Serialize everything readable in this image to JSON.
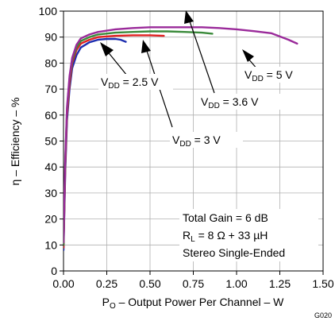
{
  "chart_data": {
    "type": "line",
    "xlabel": {
      "main": "P",
      "sub": "O",
      "rest": " – Output Power Per Channel – W"
    },
    "ylabel": "η – Efficiency – %",
    "xlim": [
      0,
      1.5
    ],
    "ylim": [
      0,
      100
    ],
    "x_ticks": [
      "0.00",
      "0.25",
      "0.50",
      "0.75",
      "1.00",
      "1.25",
      "1.50"
    ],
    "y_ticks": [
      "0",
      "10",
      "20",
      "30",
      "40",
      "50",
      "60",
      "70",
      "80",
      "90",
      "100"
    ],
    "grid": true,
    "series": [
      {
        "name": "V_DD = 2.5 V",
        "color": "#1f2fb0",
        "points": [
          [
            0,
            8
          ],
          [
            0.01,
            38
          ],
          [
            0.02,
            58
          ],
          [
            0.035,
            70
          ],
          [
            0.05,
            78
          ],
          [
            0.075,
            83
          ],
          [
            0.1,
            86
          ],
          [
            0.15,
            88
          ],
          [
            0.2,
            89
          ],
          [
            0.25,
            89.3
          ],
          [
            0.3,
            89.3
          ],
          [
            0.33,
            89
          ],
          [
            0.36,
            88.2
          ]
        ]
      },
      {
        "name": "V_DD = 3 V",
        "color": "#e02020",
        "points": [
          [
            0,
            9
          ],
          [
            0.01,
            40
          ],
          [
            0.02,
            60
          ],
          [
            0.035,
            72
          ],
          [
            0.05,
            80
          ],
          [
            0.075,
            85
          ],
          [
            0.1,
            87.5
          ],
          [
            0.15,
            89
          ],
          [
            0.2,
            90
          ],
          [
            0.3,
            90.5
          ],
          [
            0.4,
            90.7
          ],
          [
            0.5,
            90.7
          ],
          [
            0.58,
            90.5
          ]
        ]
      },
      {
        "name": "V_DD = 3.6 V",
        "color": "#3a8a3a",
        "points": [
          [
            0,
            10
          ],
          [
            0.01,
            42
          ],
          [
            0.02,
            62
          ],
          [
            0.035,
            74
          ],
          [
            0.05,
            81
          ],
          [
            0.075,
            86
          ],
          [
            0.1,
            88.5
          ],
          [
            0.15,
            90
          ],
          [
            0.2,
            91
          ],
          [
            0.3,
            91.7
          ],
          [
            0.4,
            92
          ],
          [
            0.5,
            92.2
          ],
          [
            0.6,
            92.2
          ],
          [
            0.7,
            92
          ],
          [
            0.8,
            91.7
          ],
          [
            0.86,
            91.3
          ]
        ]
      },
      {
        "name": "V_DD = 5 V",
        "color": "#9a2a9a",
        "points": [
          [
            0,
            11
          ],
          [
            0.01,
            43
          ],
          [
            0.02,
            63
          ],
          [
            0.035,
            75
          ],
          [
            0.05,
            82
          ],
          [
            0.075,
            87
          ],
          [
            0.1,
            89.5
          ],
          [
            0.15,
            91
          ],
          [
            0.2,
            92
          ],
          [
            0.3,
            93
          ],
          [
            0.4,
            93.5
          ],
          [
            0.5,
            93.8
          ],
          [
            0.6,
            93.8
          ],
          [
            0.7,
            93.8
          ],
          [
            0.8,
            93.8
          ],
          [
            0.9,
            93.5
          ],
          [
            1.0,
            93
          ],
          [
            1.1,
            92.3
          ],
          [
            1.2,
            91.5
          ],
          [
            1.3,
            89
          ],
          [
            1.35,
            87.5
          ]
        ]
      }
    ],
    "annotations": [
      {
        "id": "ann-25",
        "main": "V",
        "sub": "DD",
        "rest": " = 2.5 V"
      },
      {
        "id": "ann-3",
        "main": "V",
        "sub": "DD",
        "rest": " = 3 V"
      },
      {
        "id": "ann-36",
        "main": "V",
        "sub": "DD",
        "rest": " = 3.6 V"
      },
      {
        "id": "ann-5",
        "main": "V",
        "sub": "DD",
        "rest": " = 5 V"
      }
    ],
    "conditions": {
      "line1": "Total Gain = 6 dB",
      "line2": {
        "main": "R",
        "sub": "L",
        "rest": " = 8 Ω + 33 µH"
      },
      "line3": "Stereo Single-Ended"
    },
    "figure_id": "G020"
  }
}
